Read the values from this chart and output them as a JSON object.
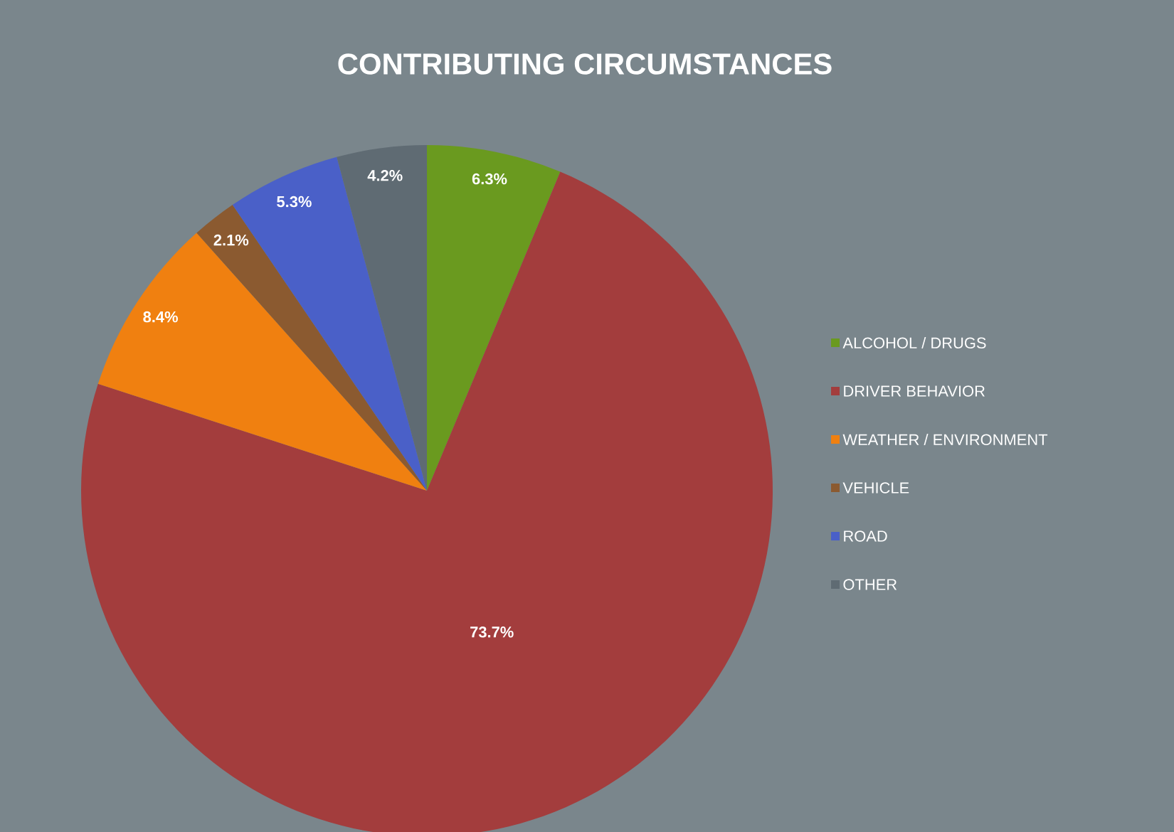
{
  "chart_data": {
    "type": "pie",
    "title": "CONTRIBUTING CIRCUMSTANCES",
    "categories": [
      "ALCOHOL / DRUGS",
      "DRIVER BEHAVIOR",
      "WEATHER / ENVIRONMENT",
      "VEHICLE",
      "ROAD",
      "OTHER"
    ],
    "values": [
      6.3,
      73.7,
      8.4,
      2.1,
      5.3,
      4.2
    ],
    "value_labels": [
      "6.3%",
      "73.7%",
      "8.4%",
      "2.1%",
      "5.3%",
      "4.2%"
    ],
    "colors": [
      "#6a9a1f",
      "#a33d3d",
      "#f08010",
      "#8b5a30",
      "#4a60c8",
      "#5f6b73"
    ],
    "legend": "right"
  }
}
